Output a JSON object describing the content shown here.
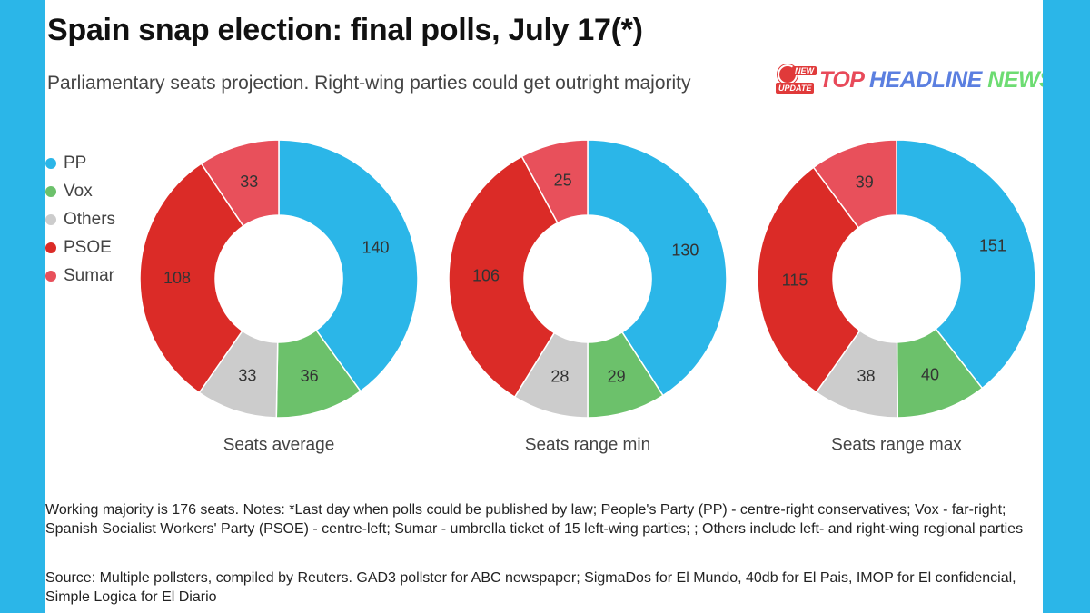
{
  "title": "Spain snap election: final polls, July 17(*)",
  "subtitle": "Parliamentary seats projection. Right-wing parties could get outright majority",
  "brand": {
    "badge_new": "NEW",
    "badge_update": "UPDATE",
    "word1": "TOP",
    "word2": "HEADLINE",
    "word3": "NEWS"
  },
  "legend": [
    {
      "label": "PP",
      "color": "#2bb6e8"
    },
    {
      "label": "Vox",
      "color": "#6cc16b"
    },
    {
      "label": "Others",
      "color": "#cccccc"
    },
    {
      "label": "PSOE",
      "color": "#db2b27"
    },
    {
      "label": "Sumar",
      "color": "#e8505b"
    }
  ],
  "chart_data": [
    {
      "type": "pie",
      "title": "Seats average",
      "categories": [
        "PP",
        "Vox",
        "Others",
        "PSOE",
        "Sumar"
      ],
      "values": [
        140,
        36,
        33,
        108,
        33
      ],
      "colors": [
        "#2bb6e8",
        "#6cc16b",
        "#cccccc",
        "#db2b27",
        "#e8505b"
      ]
    },
    {
      "type": "pie",
      "title": "Seats range min",
      "categories": [
        "PP",
        "Vox",
        "Others",
        "PSOE",
        "Sumar"
      ],
      "values": [
        130,
        29,
        28,
        106,
        25
      ],
      "colors": [
        "#2bb6e8",
        "#6cc16b",
        "#cccccc",
        "#db2b27",
        "#e8505b"
      ]
    },
    {
      "type": "pie",
      "title": "Seats range max",
      "categories": [
        "PP",
        "Vox",
        "Others",
        "PSOE",
        "Sumar"
      ],
      "values": [
        151,
        40,
        38,
        115,
        39
      ],
      "colors": [
        "#2bb6e8",
        "#6cc16b",
        "#cccccc",
        "#db2b27",
        "#e8505b"
      ]
    }
  ],
  "notes": "Working majority is 176 seats. Notes: *Last day when polls could be published by law; People's Party (PP) - centre-right conservatives; Vox - far-right; Spanish Socialist Workers' Party (PSOE) - centre-left; Sumar - umbrella ticket of 15 left-wing parties; ; Others include left- and right-wing regional parties",
  "source": "Source: Multiple pollsters, compiled by Reuters. GAD3 pollster for ABC newspaper; SigmaDos for El Mundo, 40db for El Pais, IMOP for El confidencial, Simple Logica for El Diario"
}
